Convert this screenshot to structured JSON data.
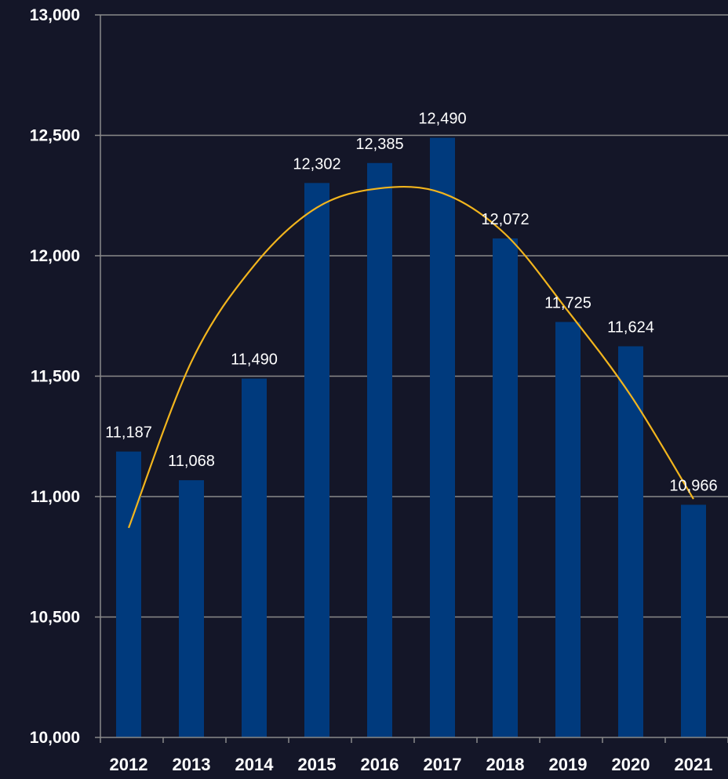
{
  "chart_data": {
    "type": "bar",
    "categories": [
      "2012",
      "2013",
      "2014",
      "2015",
      "2016",
      "2017",
      "2018",
      "2019",
      "2020",
      "2021"
    ],
    "values": [
      11187,
      11068,
      11490,
      12302,
      12385,
      12490,
      12072,
      11725,
      11624,
      10966
    ],
    "value_labels": [
      "11,187",
      "11,068",
      "11,490",
      "12,302",
      "12,385",
      "12,490",
      "12,072",
      "11,725",
      "11,624",
      "10,966"
    ],
    "ylim": [
      10000,
      13000
    ],
    "yticks": [
      10000,
      10500,
      11000,
      11500,
      12000,
      12500,
      13000
    ],
    "ytick_labels": [
      "10,000",
      "10,500",
      "11,000",
      "11,500",
      "12,000",
      "12,500",
      "13,000"
    ],
    "grid": true,
    "trendline": {
      "type": "polynomial-2",
      "values": [
        10870,
        11560,
        11960,
        12200,
        12280,
        12260,
        12090,
        11770,
        11420,
        10990
      ]
    },
    "colors": {
      "background": "#141628",
      "bar": "#003a7d",
      "trendline": "#f2b51d",
      "grid": "#8a8a8a",
      "text": "#ffffff"
    },
    "title": "",
    "xlabel": "",
    "ylabel": ""
  }
}
